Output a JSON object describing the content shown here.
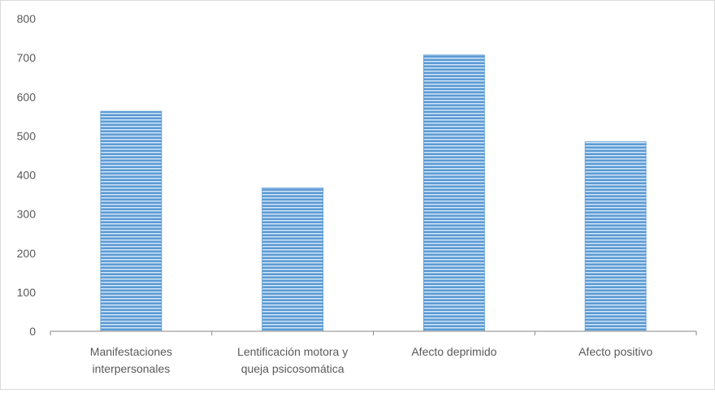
{
  "chart_data": {
    "type": "bar",
    "title": "",
    "xlabel": "",
    "ylabel": "",
    "categories": [
      [
        "Manifestaciones",
        "interpersonales"
      ],
      [
        "Lentificación motora y",
        "queja psicosomática"
      ],
      [
        "Afecto deprimido"
      ],
      [
        "Afecto positivo"
      ]
    ],
    "values": [
      563,
      367,
      707,
      485
    ],
    "ylim": [
      0,
      800
    ],
    "yticks": [
      "0",
      "100",
      "200",
      "300",
      "400",
      "500",
      "600",
      "700",
      "800"
    ],
    "grid": false,
    "legend": "none",
    "bar_color": "#5b9bd5",
    "bar_stripe_color": "#dce9f6",
    "axis_color": "#868686",
    "text_color": "#595959"
  }
}
